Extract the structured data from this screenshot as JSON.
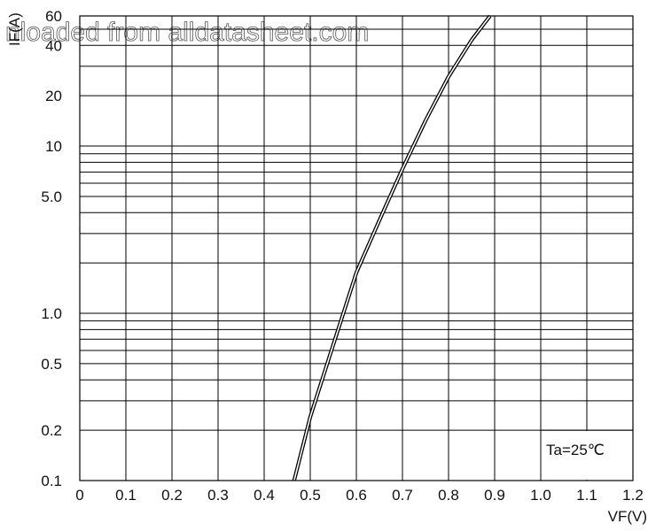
{
  "watermark": "nloaded from alldatasheet.com",
  "chart_data": {
    "type": "line",
    "title": "",
    "xlabel": "VF(V)",
    "ylabel": "IF(A)",
    "xlim": [
      0,
      1.2
    ],
    "ylim": [
      0.1,
      60
    ],
    "y_scale": "log",
    "grid": true,
    "x_ticks": [
      "0",
      "0.1",
      "0.2",
      "0.3",
      "0.4",
      "0.5",
      "0.6",
      "0.7",
      "0.8",
      "0.9",
      "1.0",
      "1.1",
      "1.2"
    ],
    "y_ticks": [
      {
        "value": 0.1,
        "label": "0.1"
      },
      {
        "value": 0.2,
        "label": "0.2"
      },
      {
        "value": 0.5,
        "label": "0.5"
      },
      {
        "value": 1.0,
        "label": "1.0"
      },
      {
        "value": 5.0,
        "label": "5.0"
      },
      {
        "value": 10,
        "label": "10"
      },
      {
        "value": 20,
        "label": "20"
      },
      {
        "value": 40,
        "label": "40"
      },
      {
        "value": 60,
        "label": "60"
      }
    ],
    "annotation": "Ta=25℃",
    "series": [
      {
        "x": [
          0.465,
          0.5,
          0.55,
          0.6,
          0.65,
          0.7,
          0.75,
          0.8,
          0.85,
          0.89
        ],
        "y": [
          0.1,
          0.24,
          0.65,
          1.75,
          3.6,
          7.3,
          14.2,
          26,
          43,
          60
        ]
      }
    ]
  }
}
